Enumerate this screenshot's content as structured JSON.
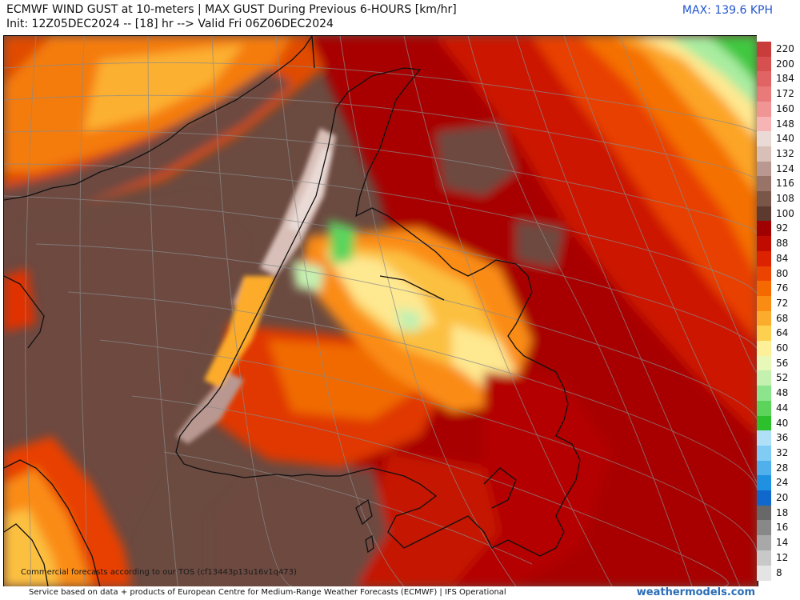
{
  "header": {
    "title_line1": "ECMWF WIND GUST at 10-meters | MAX GUST During Previous 6-HOURS [km/hr]",
    "title_line2": "Init: 12Z05DEC2024 -- [18] hr --> Valid Fri 06Z06DEC2024",
    "max_label": "MAX: 139.6 KPH"
  },
  "map": {
    "region": "Newfoundland, Gulf of St. Lawrence and Quebec North Shore",
    "tos_notice": "Commercial forecasts according to our TOS (cf13443p13u16v1q473)"
  },
  "legend": {
    "items": [
      {
        "label": "220",
        "color": "#c83c3c"
      },
      {
        "label": "200",
        "color": "#d65050"
      },
      {
        "label": "184",
        "color": "#e06464"
      },
      {
        "label": "172",
        "color": "#e87a7a"
      },
      {
        "label": "160",
        "color": "#f09494"
      },
      {
        "label": "148",
        "color": "#f6b4b4"
      },
      {
        "label": "140",
        "color": "#eadad6"
      },
      {
        "label": "132",
        "color": "#d8c0b8"
      },
      {
        "label": "124",
        "color": "#b89890"
      },
      {
        "label": "116",
        "color": "#987468"
      },
      {
        "label": "108",
        "color": "#7a5648"
      },
      {
        "label": "100",
        "color": "#5c3a30"
      },
      {
        "label": "92",
        "color": "#a00000"
      },
      {
        "label": "88",
        "color": "#c00c00"
      },
      {
        "label": "84",
        "color": "#dc2200"
      },
      {
        "label": "80",
        "color": "#ec4400"
      },
      {
        "label": "76",
        "color": "#f46a00"
      },
      {
        "label": "72",
        "color": "#fa8c14"
      },
      {
        "label": "68",
        "color": "#fcac2c"
      },
      {
        "label": "64",
        "color": "#fdd050"
      },
      {
        "label": "60",
        "color": "#fef098"
      },
      {
        "label": "56",
        "color": "#e8f8b8"
      },
      {
        "label": "52",
        "color": "#c4f0b0"
      },
      {
        "label": "48",
        "color": "#8ce48c"
      },
      {
        "label": "44",
        "color": "#5cd45c"
      },
      {
        "label": "40",
        "color": "#2cc02c"
      },
      {
        "label": "36",
        "color": "#b0e0f8"
      },
      {
        "label": "32",
        "color": "#80ccf4"
      },
      {
        "label": "28",
        "color": "#50b0ec"
      },
      {
        "label": "24",
        "color": "#2090e0"
      },
      {
        "label": "20",
        "color": "#1068cc"
      },
      {
        "label": "18",
        "color": "#686868"
      },
      {
        "label": "16",
        "color": "#888888"
      },
      {
        "label": "14",
        "color": "#a8a8a8"
      },
      {
        "label": "12",
        "color": "#c8c8c8"
      },
      {
        "label": "8",
        "color": "#e4e4e4"
      }
    ]
  },
  "footer": {
    "text": "Service based on data + products of European Centre for Medium-Range Weather Forecasts (ECMWF) | IFS Operational",
    "credit": "weathermodels.com"
  }
}
